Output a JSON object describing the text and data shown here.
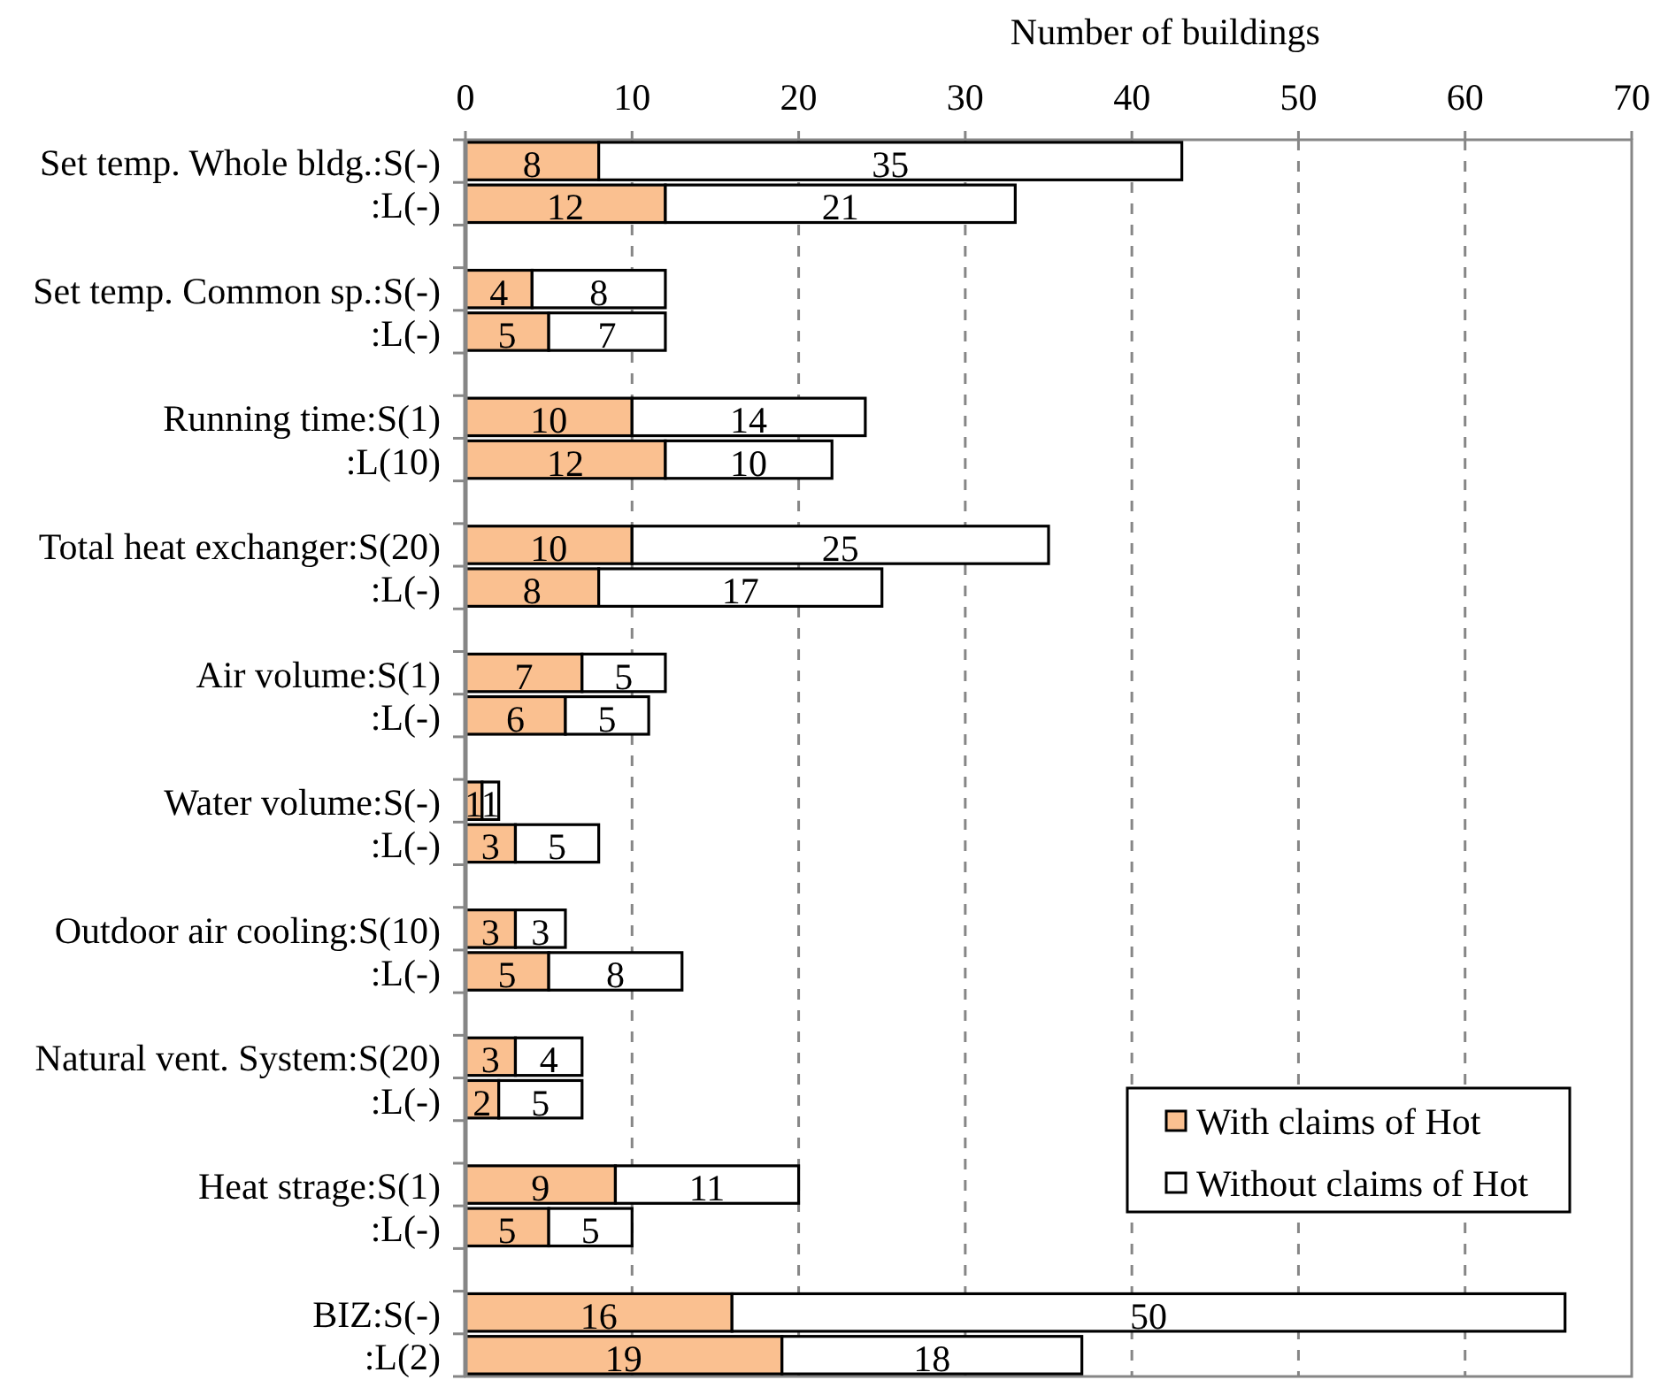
{
  "chart_data": {
    "type": "bar",
    "orientation": "horizontal",
    "stacked": true,
    "xlabel": "Number of buildings",
    "categories": [
      "Set temp. Whole bldg.:S(-)",
      ":L(-)",
      null,
      "Set temp. Common sp.:S(-)",
      ":L(-)",
      null,
      "Running time:S(1)",
      ":L(10)",
      null,
      "Total heat exchanger:S(20)",
      ":L(-)",
      null,
      "Air volume:S(1)",
      ":L(-)",
      null,
      "Water volume:S(-)",
      ":L(-)",
      null,
      "Outdoor air cooling:S(10)",
      ":L(-)",
      null,
      "Natural vent. System:S(20)",
      ":L(-)",
      null,
      "Heat strage:S(1)",
      ":L(-)",
      null,
      "BIZ:S(-)",
      ":L(2)"
    ],
    "series": [
      {
        "name": "With claims of Hot",
        "color": "#fac090",
        "values": [
          8,
          12,
          null,
          4,
          5,
          null,
          10,
          12,
          null,
          10,
          8,
          null,
          7,
          6,
          null,
          1,
          3,
          null,
          3,
          5,
          null,
          3,
          2,
          null,
          9,
          5,
          null,
          16,
          19
        ]
      },
      {
        "name": "Without claims of Hot",
        "color": "#ffffff",
        "values": [
          35,
          21,
          null,
          8,
          7,
          null,
          14,
          10,
          null,
          25,
          17,
          null,
          5,
          5,
          null,
          1,
          5,
          null,
          3,
          8,
          null,
          4,
          5,
          null,
          11,
          5,
          null,
          50,
          18
        ]
      }
    ],
    "xlim": [
      0,
      70
    ],
    "xticks": [
      0,
      10,
      20,
      30,
      40,
      50,
      60,
      70
    ],
    "grid": "x",
    "legend": "bottom right",
    "data_labels": true
  }
}
